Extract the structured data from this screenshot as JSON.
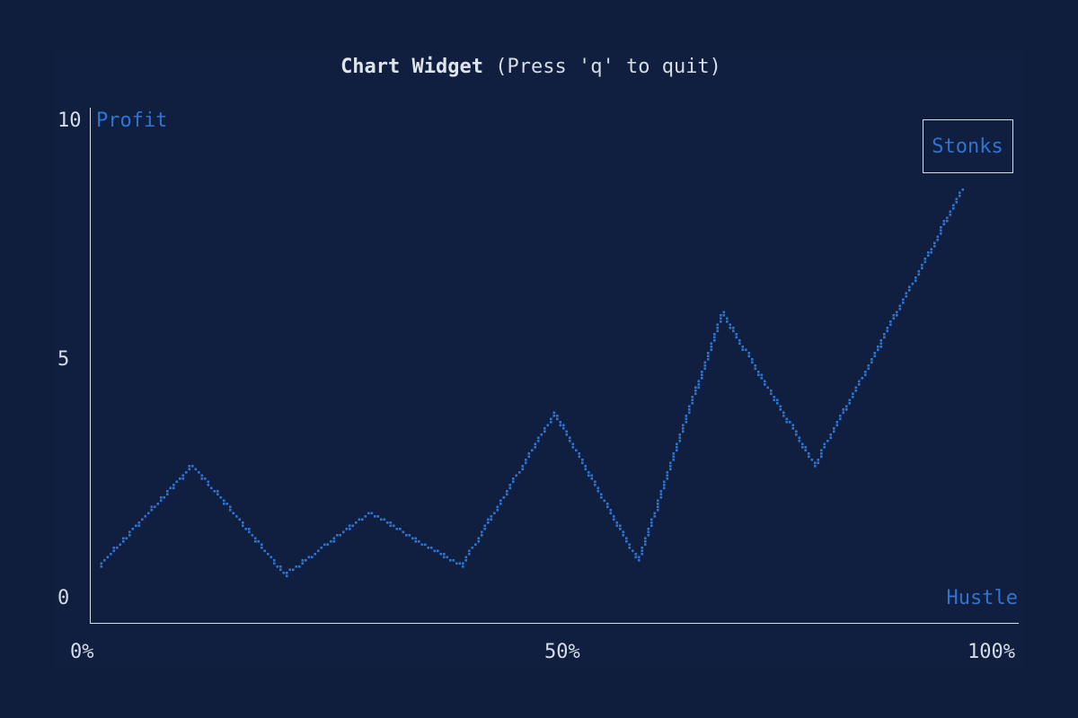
{
  "window": {
    "title_bold": "Chart Widget",
    "title_hint": "(Press 'q' to quit)"
  },
  "colors": {
    "background": "#0f1e3d",
    "axis": "#d6dbe6",
    "series": "#2f74d0",
    "text": "#d6dbe6"
  },
  "chart_data": {
    "type": "line",
    "title": "",
    "xlabel": "Hustle",
    "ylabel": "Profit",
    "xlim": [
      0,
      100
    ],
    "ylim": [
      0,
      10
    ],
    "x_ticks": [
      "0%",
      "50%",
      "100%"
    ],
    "y_ticks": [
      "0",
      "5",
      "10"
    ],
    "legend": {
      "entries": [
        "Stonks"
      ],
      "placement": "top-right",
      "bordered": true
    },
    "grid": false,
    "series": [
      {
        "name": "Stonks",
        "x": [
          0,
          10,
          20,
          29,
          39,
          49,
          58,
          67,
          77,
          93
        ],
        "y": [
          0.7,
          2.8,
          0.5,
          1.8,
          0.7,
          3.9,
          0.8,
          6.0,
          2.8,
          8.6
        ]
      }
    ]
  }
}
